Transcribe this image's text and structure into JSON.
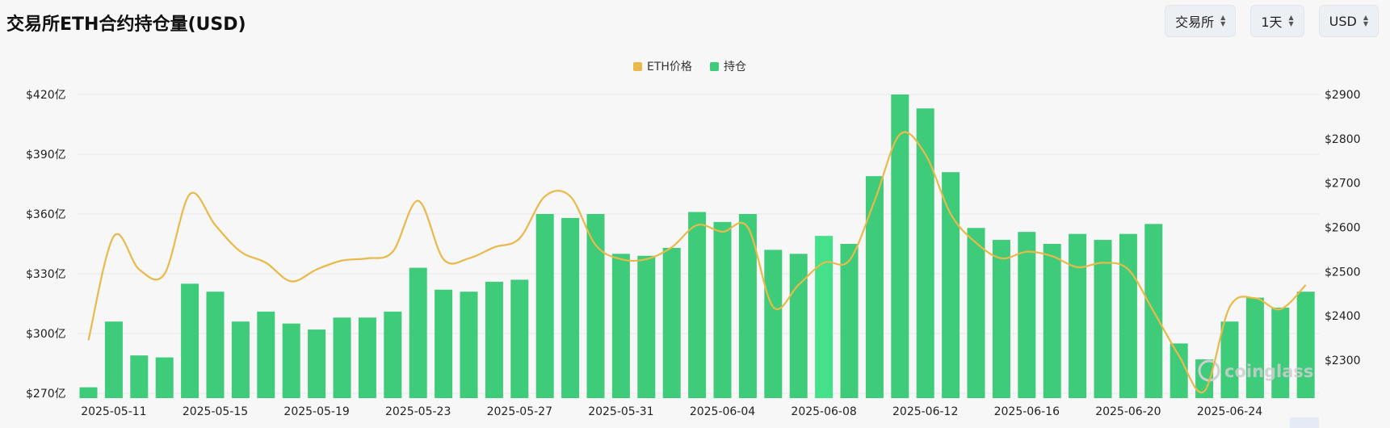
{
  "header": {
    "title": "交易所ETH合约持仓量(USD)"
  },
  "controls": {
    "exchange": {
      "label": "交易所"
    },
    "interval": {
      "label": "1天"
    },
    "currency": {
      "label": "USD"
    }
  },
  "watermark": "coinglass",
  "colors": {
    "bar": "#3ecb7a",
    "bar_highlight": "#45e08a",
    "line": "#e9b949",
    "grid": "#e8e8e8"
  },
  "icons": {
    "select": "chevron-up-down-icon",
    "watermark": "coinglass-logo-icon"
  },
  "chart_data": {
    "type": "bar+line",
    "legend": [
      {
        "name": "ETH价格",
        "color": "#e9b949"
      },
      {
        "name": "持仓",
        "color": "#3ecb7a"
      }
    ],
    "legend_position": "top-center",
    "grid": true,
    "y_left": {
      "ticks": [
        270,
        300,
        330,
        360,
        390,
        420
      ],
      "tick_labels": [
        "$270亿",
        "$300亿",
        "$330亿",
        "$360亿",
        "$390亿",
        "$420亿"
      ],
      "range": [
        270,
        420
      ]
    },
    "y_right": {
      "ticks": [
        2300,
        2400,
        2500,
        2600,
        2700,
        2800,
        2900
      ],
      "tick_labels": [
        "$2300",
        "$2400",
        "$2500",
        "$2600",
        "$2700",
        "$2800",
        "$2900"
      ],
      "range": [
        2200,
        2900
      ]
    },
    "x_tick_labels": [
      "2025-05-11",
      "2025-05-15",
      "2025-05-19",
      "2025-05-23",
      "2025-05-27",
      "2025-05-31",
      "2025-06-04",
      "2025-06-08",
      "2025-06-12",
      "2025-06-16",
      "2025-06-20",
      "2025-06-24"
    ],
    "dates": [
      "2025-05-10",
      "2025-05-11",
      "2025-05-12",
      "2025-05-13",
      "2025-05-14",
      "2025-05-15",
      "2025-05-16",
      "2025-05-17",
      "2025-05-18",
      "2025-05-19",
      "2025-05-20",
      "2025-05-21",
      "2025-05-22",
      "2025-05-23",
      "2025-05-24",
      "2025-05-25",
      "2025-05-26",
      "2025-05-27",
      "2025-05-28",
      "2025-05-29",
      "2025-05-30",
      "2025-05-31",
      "2025-06-01",
      "2025-06-02",
      "2025-06-03",
      "2025-06-04",
      "2025-06-05",
      "2025-06-06",
      "2025-06-07",
      "2025-06-08",
      "2025-06-09",
      "2025-06-10",
      "2025-06-11",
      "2025-06-12",
      "2025-06-13",
      "2025-06-14",
      "2025-06-15",
      "2025-06-16",
      "2025-06-17",
      "2025-06-18",
      "2025-06-19",
      "2025-06-20",
      "2025-06-21",
      "2025-06-22",
      "2025-06-23",
      "2025-06-24",
      "2025-06-25",
      "2025-06-26",
      "2025-06-27"
    ],
    "series": [
      {
        "name": "持仓",
        "type": "bar",
        "axis": "left",
        "values": [
          273,
          306,
          289,
          288,
          325,
          321,
          306,
          311,
          305,
          302,
          308,
          308,
          311,
          333,
          322,
          321,
          326,
          327,
          360,
          358,
          360,
          340,
          339,
          343,
          361,
          356,
          360,
          342,
          340,
          349,
          345,
          379,
          420,
          413,
          381,
          353,
          347,
          351,
          345,
          350,
          347,
          350,
          355,
          295,
          287,
          306,
          318,
          313,
          321
        ]
      },
      {
        "name": "ETH价格",
        "type": "line",
        "axis": "right",
        "values": [
          2345,
          2580,
          2505,
          2495,
          2675,
          2605,
          2545,
          2520,
          2478,
          2505,
          2525,
          2530,
          2545,
          2660,
          2528,
          2530,
          2555,
          2575,
          2670,
          2670,
          2560,
          2528,
          2528,
          2555,
          2605,
          2590,
          2600,
          2420,
          2470,
          2520,
          2525,
          2660,
          2810,
          2765,
          2630,
          2565,
          2530,
          2545,
          2535,
          2510,
          2520,
          2505,
          2410,
          2310,
          2230,
          2420,
          2440,
          2415,
          2470
        ]
      }
    ],
    "highlight_index": 29
  }
}
